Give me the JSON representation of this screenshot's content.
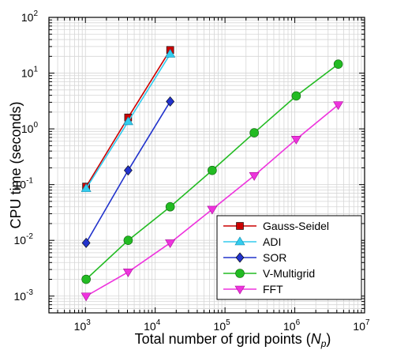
{
  "chart_data": {
    "type": "line",
    "xscale": "log",
    "yscale": "log",
    "xlim": [
      300,
      10000000
    ],
    "ylim": [
      0.0005,
      100
    ],
    "x_ticks": [
      1000,
      10000,
      100000,
      1000000,
      10000000
    ],
    "y_ticks": [
      0.001,
      0.01,
      0.1,
      1,
      10,
      100
    ],
    "x_tick_labels": [
      {
        "base": "10",
        "exp": "3"
      },
      {
        "base": "10",
        "exp": "4"
      },
      {
        "base": "10",
        "exp": "5"
      },
      {
        "base": "10",
        "exp": "6"
      },
      {
        "base": "10",
        "exp": "7"
      }
    ],
    "y_tick_labels": [
      {
        "base": "10",
        "exp": "-3"
      },
      {
        "base": "10",
        "exp": "-2"
      },
      {
        "base": "10",
        "exp": "-1"
      },
      {
        "base": "10",
        "exp": "0"
      },
      {
        "base": "10",
        "exp": "1"
      },
      {
        "base": "10",
        "exp": "2"
      }
    ],
    "xlabel": {
      "prefix": "Total number of grid points (",
      "var": "N",
      "sub": "p",
      "suffix": ")"
    },
    "ylabel": "CPU time (seconds)",
    "grid": true,
    "legend_position": "bottom-right",
    "series": [
      {
        "name": "Gauss-Seidel",
        "color": "#cc0000",
        "marker": "square",
        "x": [
          1024,
          4096,
          16384
        ],
        "y": [
          0.092,
          1.6,
          26
        ]
      },
      {
        "name": "ADI",
        "color": "#33ccee",
        "marker": "triangle-up",
        "x": [
          1024,
          4096,
          16384
        ],
        "y": [
          0.085,
          1.35,
          22
        ]
      },
      {
        "name": "SOR",
        "color": "#2233cc",
        "marker": "diamond",
        "x": [
          1024,
          4096,
          16384
        ],
        "y": [
          0.009,
          0.18,
          3.1
        ]
      },
      {
        "name": "V-Multigrid",
        "color": "#22bb22",
        "marker": "circle",
        "x": [
          1024,
          4096,
          16384,
          65536,
          262144,
          1048576,
          4194304
        ],
        "y": [
          0.002,
          0.01,
          0.04,
          0.18,
          0.85,
          3.9,
          14.5
        ]
      },
      {
        "name": "FFT",
        "color": "#ee33dd",
        "marker": "triangle-down",
        "x": [
          1024,
          4096,
          16384,
          65536,
          262144,
          1048576,
          4194304
        ],
        "y": [
          0.001,
          0.0027,
          0.009,
          0.036,
          0.145,
          0.65,
          2.7
        ]
      }
    ]
  }
}
